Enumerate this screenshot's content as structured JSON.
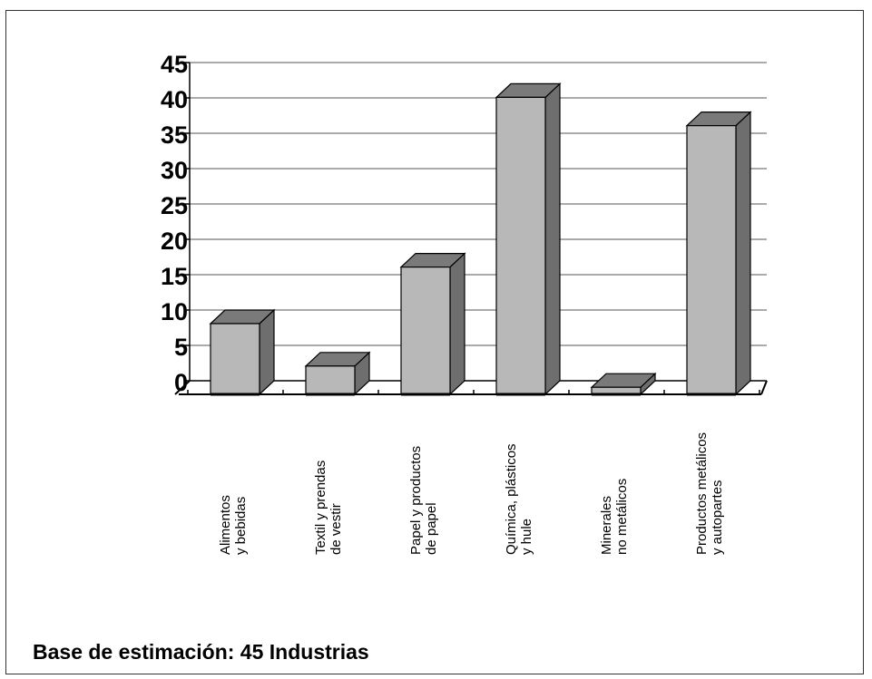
{
  "chart_data": {
    "type": "bar",
    "style": "3d-column",
    "categories": [
      [
        "Alimentos",
        "y bebidas"
      ],
      [
        "Textil y prendas",
        "de vestir"
      ],
      [
        "Papel y productos",
        "de papel"
      ],
      [
        "Química, plásticos",
        "y hule"
      ],
      [
        "Minerales",
        "no metálicos"
      ],
      [
        "Productos metálicos",
        "y autopartes"
      ]
    ],
    "values": [
      10,
      4,
      18,
      42,
      1,
      38
    ],
    "ylim": [
      0,
      45
    ],
    "yticks": [
      "0",
      "5",
      "10",
      "15",
      "20",
      "25",
      "30",
      "35",
      "40",
      "45"
    ],
    "grid": true,
    "legend": "none",
    "colors": {
      "bar_front": "#b8b8b8",
      "bar_top": "#7a7a7a",
      "bar_side": "#6e6e6e",
      "gridline": "#555555",
      "axis": "#000000"
    }
  },
  "footnote": "Base de estimación: 45 Industrias"
}
